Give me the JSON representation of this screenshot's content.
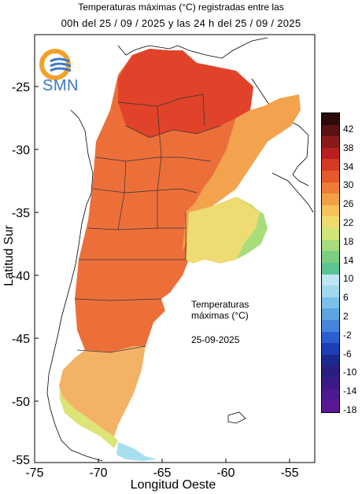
{
  "header": {
    "line1": "Temperaturas máximas (°C) registradas entre las",
    "line2": "00h del 25 / 09 / 2025 y las 24 h del 25 / 09 / 2025"
  },
  "logo": {
    "text": "SMN"
  },
  "axes": {
    "ylabel": "Latitud Sur",
    "xlabel": "Longitud Oeste",
    "yticks": [
      "-25",
      "-30",
      "-35",
      "-40",
      "-45",
      "-50",
      "-55"
    ],
    "xticks": [
      "-75",
      "-70",
      "-65",
      "-60",
      "-55"
    ]
  },
  "annotation": {
    "line1": "Temperaturas",
    "line2": "máximas (°C)",
    "date": "25-09-2025"
  },
  "legend": {
    "labels": [
      "42",
      "38",
      "34",
      "30",
      "26",
      "22",
      "18",
      "14",
      "10",
      "6",
      "2",
      "-2",
      "-6",
      "-10",
      "-14",
      "-18"
    ],
    "colors": [
      "#2b0a0a",
      "#5a1212",
      "#8a1a1a",
      "#b82020",
      "#d63a24",
      "#e55a2c",
      "#ee7c38",
      "#f4a048",
      "#f6c25a",
      "#eedc6e",
      "#cfe67a",
      "#a6dc7c",
      "#7ccf80",
      "#5cc492",
      "#bfe6f2",
      "#a0d8ee",
      "#7ac0ea",
      "#5aa4e2",
      "#4684dc",
      "#2d5ed0",
      "#1e3eb8",
      "#1a2a90",
      "#2a1f80",
      "#3c1a86",
      "#4d1890",
      "#5a1896"
    ]
  },
  "regions": [
    {
      "name": "north",
      "color": "#e0432a"
    },
    {
      "name": "center",
      "color": "#ec6f3a"
    },
    {
      "name": "east",
      "color": "#f3a24e"
    },
    {
      "name": "pampa",
      "color": "#eedb72"
    },
    {
      "name": "coast",
      "color": "#a9dd7c"
    },
    {
      "name": "south",
      "color": "#f4b266"
    },
    {
      "name": "far-south",
      "color": "#dde478"
    }
  ]
}
